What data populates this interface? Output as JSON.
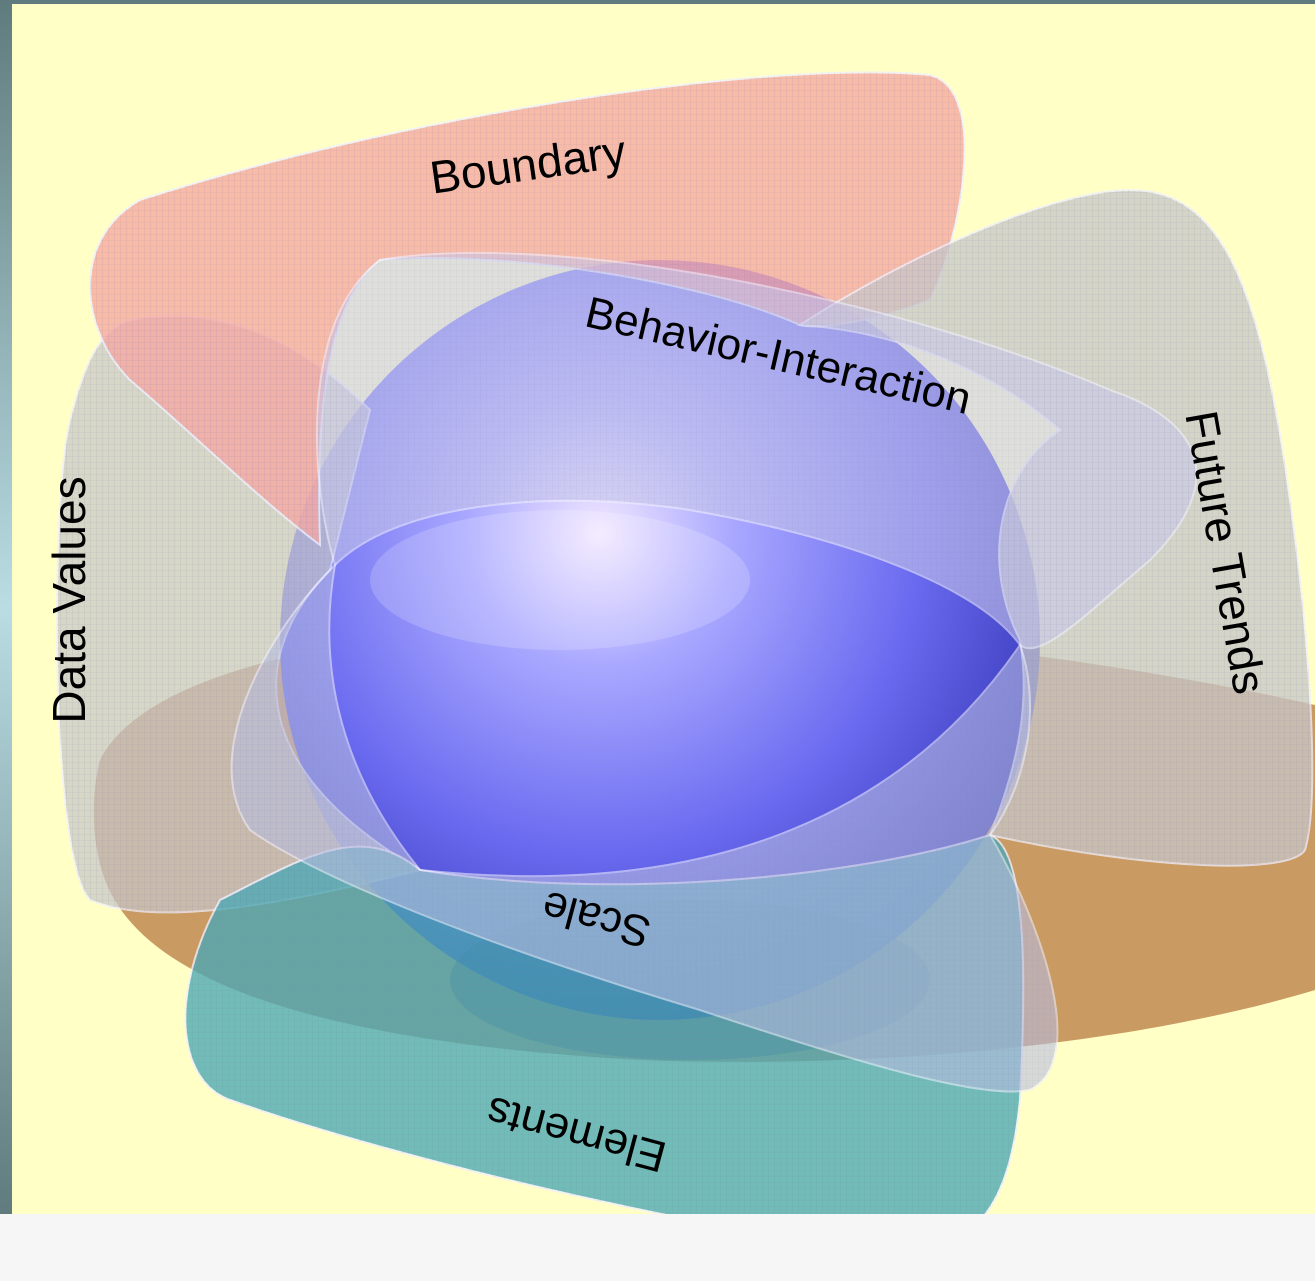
{
  "labels": {
    "boundary": "Boundary",
    "behavior_interaction": "Behavior-Interaction",
    "future_trends": "Future Trends",
    "data_values": "Data Values",
    "scale": "Scale",
    "elements": "Elements"
  },
  "colors": {
    "background": "#ffffc6",
    "frame": "#5f7b7e",
    "sphere": "#6a6af0",
    "ring": "#c08850",
    "boundary_petal": "#f7a8a0",
    "behavior_petal": "#c8c8ea",
    "future_trends_petal": "#c8c8c8",
    "data_values_petal": "#c8c8c8",
    "scale_petal": "#b8bde0",
    "elements_petal": "#4aaab4"
  }
}
